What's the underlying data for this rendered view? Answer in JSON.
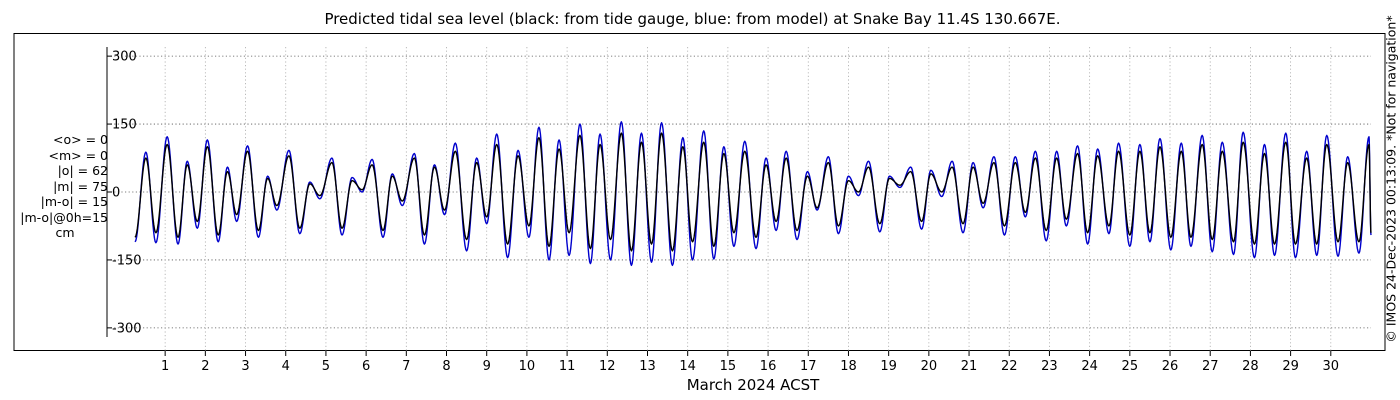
{
  "title": "Predicted tidal sea level (black: from tide gauge, blue: from model) at Snake Bay 11.4S 130.667E.",
  "stats": [
    "<o> = 0",
    "<m> = 0",
    "|o| = 62",
    "|m| = 75",
    "|m-o| = 15",
    "|m-o|@0h=15"
  ],
  "stats_unit": "cm",
  "credit": "© IMOS 24-Dec-2023 00:13:09. *Not for navigation*",
  "chart_data": {
    "type": "line",
    "title": "Predicted tidal sea level (black: from tide gauge, blue: from model) at Snake Bay 11.4S 130.667E.",
    "xlabel": "March 2024 ACST",
    "ylabel": "",
    "x_range": [
      0.25,
      31.0
    ],
    "ylim": [
      -350,
      350
    ],
    "y_ticks": [
      300,
      150,
      0,
      -150,
      -300
    ],
    "y_tick_labels": [
      "300",
      "150",
      "0",
      "-150",
      "-300"
    ],
    "x_ticks": [
      1,
      2,
      3,
      4,
      5,
      6,
      7,
      8,
      9,
      10,
      11,
      12,
      13,
      14,
      15,
      16,
      17,
      18,
      19,
      20,
      21,
      22,
      23,
      24,
      25,
      26,
      27,
      28,
      29,
      30
    ],
    "x_tick_labels": [
      "1",
      "2",
      "3",
      "4",
      "5",
      "6",
      "7",
      "8",
      "9",
      "10",
      "11",
      "12",
      "13",
      "14",
      "15",
      "16",
      "17",
      "18",
      "19",
      "20",
      "21",
      "22",
      "23",
      "24",
      "25",
      "26",
      "27",
      "28",
      "29",
      "30"
    ],
    "grid": true,
    "series": [
      {
        "name": "black: from tide gauge",
        "color": "#000000",
        "extrema": [
          [
            0.25,
            -100
          ],
          [
            0.52,
            75
          ],
          [
            0.77,
            -90
          ],
          [
            1.05,
            105
          ],
          [
            1.32,
            -100
          ],
          [
            1.55,
            60
          ],
          [
            1.8,
            -65
          ],
          [
            2.05,
            100
          ],
          [
            2.32,
            -95
          ],
          [
            2.55,
            45
          ],
          [
            2.78,
            -50
          ],
          [
            3.05,
            90
          ],
          [
            3.32,
            -85
          ],
          [
            3.55,
            30
          ],
          [
            3.78,
            -30
          ],
          [
            4.08,
            80
          ],
          [
            4.35,
            -80
          ],
          [
            4.6,
            18
          ],
          [
            4.85,
            -8
          ],
          [
            5.15,
            65
          ],
          [
            5.4,
            -80
          ],
          [
            5.65,
            25
          ],
          [
            5.9,
            5
          ],
          [
            6.15,
            60
          ],
          [
            6.42,
            -85
          ],
          [
            6.65,
            35
          ],
          [
            6.9,
            -20
          ],
          [
            7.2,
            75
          ],
          [
            7.45,
            -95
          ],
          [
            7.7,
            55
          ],
          [
            7.95,
            -40
          ],
          [
            8.22,
            90
          ],
          [
            8.5,
            -105
          ],
          [
            8.75,
            65
          ],
          [
            9.0,
            -55
          ],
          [
            9.25,
            105
          ],
          [
            9.52,
            -115
          ],
          [
            9.78,
            80
          ],
          [
            10.05,
            -75
          ],
          [
            10.3,
            120
          ],
          [
            10.55,
            -120
          ],
          [
            10.8,
            95
          ],
          [
            11.05,
            -90
          ],
          [
            11.32,
            125
          ],
          [
            11.58,
            -125
          ],
          [
            11.82,
            105
          ],
          [
            12.08,
            -105
          ],
          [
            12.35,
            130
          ],
          [
            12.6,
            -130
          ],
          [
            12.85,
            110
          ],
          [
            13.1,
            -115
          ],
          [
            13.35,
            130
          ],
          [
            13.62,
            -130
          ],
          [
            13.88,
            100
          ],
          [
            14.12,
            -110
          ],
          [
            14.4,
            110
          ],
          [
            14.65,
            -120
          ],
          [
            14.9,
            85
          ],
          [
            15.15,
            -90
          ],
          [
            15.42,
            90
          ],
          [
            15.7,
            -100
          ],
          [
            15.95,
            60
          ],
          [
            16.2,
            -65
          ],
          [
            16.45,
            75
          ],
          [
            16.72,
            -85
          ],
          [
            16.98,
            35
          ],
          [
            17.22,
            -35
          ],
          [
            17.5,
            65
          ],
          [
            17.75,
            -75
          ],
          [
            18.0,
            25
          ],
          [
            18.25,
            0
          ],
          [
            18.5,
            55
          ],
          [
            18.78,
            -70
          ],
          [
            19.02,
            30
          ],
          [
            19.28,
            15
          ],
          [
            19.55,
            45
          ],
          [
            19.82,
            -65
          ],
          [
            20.05,
            40
          ],
          [
            20.32,
            0
          ],
          [
            20.58,
            55
          ],
          [
            20.85,
            -70
          ],
          [
            21.1,
            55
          ],
          [
            21.35,
            -25
          ],
          [
            21.62,
            65
          ],
          [
            21.88,
            -75
          ],
          [
            22.15,
            65
          ],
          [
            22.4,
            -45
          ],
          [
            22.65,
            75
          ],
          [
            22.92,
            -85
          ],
          [
            23.18,
            75
          ],
          [
            23.42,
            -60
          ],
          [
            23.7,
            85
          ],
          [
            23.95,
            -90
          ],
          [
            24.2,
            80
          ],
          [
            24.48,
            -75
          ],
          [
            24.72,
            90
          ],
          [
            25.0,
            -95
          ],
          [
            25.25,
            90
          ],
          [
            25.5,
            -90
          ],
          [
            25.75,
            100
          ],
          [
            26.02,
            -100
          ],
          [
            26.28,
            90
          ],
          [
            26.52,
            -100
          ],
          [
            26.8,
            105
          ],
          [
            27.05,
            -105
          ],
          [
            27.3,
            90
          ],
          [
            27.58,
            -110
          ],
          [
            27.82,
            110
          ],
          [
            28.1,
            -115
          ],
          [
            28.35,
            85
          ],
          [
            28.6,
            -115
          ],
          [
            28.88,
            110
          ],
          [
            29.12,
            -115
          ],
          [
            29.4,
            75
          ],
          [
            29.65,
            -115
          ],
          [
            29.9,
            105
          ],
          [
            30.18,
            -110
          ],
          [
            30.42,
            65
          ],
          [
            30.7,
            -110
          ],
          [
            30.95,
            105
          ],
          [
            31.0,
            -90
          ]
        ]
      },
      {
        "name": "blue: from model",
        "color": "#0000cc",
        "extrema": [
          [
            0.25,
            -110
          ],
          [
            0.52,
            88
          ],
          [
            0.77,
            -112
          ],
          [
            1.05,
            122
          ],
          [
            1.32,
            -115
          ],
          [
            1.55,
            68
          ],
          [
            1.8,
            -80
          ],
          [
            2.05,
            115
          ],
          [
            2.32,
            -110
          ],
          [
            2.55,
            55
          ],
          [
            2.78,
            -65
          ],
          [
            3.05,
            102
          ],
          [
            3.32,
            -100
          ],
          [
            3.55,
            35
          ],
          [
            3.78,
            -40
          ],
          [
            4.08,
            92
          ],
          [
            4.35,
            -92
          ],
          [
            4.6,
            22
          ],
          [
            4.85,
            -15
          ],
          [
            5.15,
            75
          ],
          [
            5.4,
            -95
          ],
          [
            5.65,
            32
          ],
          [
            5.9,
            0
          ],
          [
            6.15,
            72
          ],
          [
            6.42,
            -100
          ],
          [
            6.65,
            40
          ],
          [
            6.9,
            -30
          ],
          [
            7.2,
            85
          ],
          [
            7.45,
            -115
          ],
          [
            7.7,
            60
          ],
          [
            7.95,
            -50
          ],
          [
            8.22,
            108
          ],
          [
            8.5,
            -130
          ],
          [
            8.75,
            75
          ],
          [
            9.0,
            -70
          ],
          [
            9.25,
            128
          ],
          [
            9.52,
            -145
          ],
          [
            9.78,
            92
          ],
          [
            10.05,
            -100
          ],
          [
            10.3,
            143
          ],
          [
            10.55,
            -150
          ],
          [
            10.8,
            115
          ],
          [
            11.05,
            -140
          ],
          [
            11.32,
            150
          ],
          [
            11.58,
            -158
          ],
          [
            11.82,
            128
          ],
          [
            12.08,
            -150
          ],
          [
            12.35,
            155
          ],
          [
            12.6,
            -162
          ],
          [
            12.85,
            130
          ],
          [
            13.1,
            -155
          ],
          [
            13.35,
            153
          ],
          [
            13.62,
            -162
          ],
          [
            13.88,
            120
          ],
          [
            14.12,
            -150
          ],
          [
            14.4,
            135
          ],
          [
            14.65,
            -148
          ],
          [
            14.9,
            100
          ],
          [
            15.15,
            -120
          ],
          [
            15.42,
            112
          ],
          [
            15.7,
            -125
          ],
          [
            15.95,
            75
          ],
          [
            16.2,
            -85
          ],
          [
            16.45,
            90
          ],
          [
            16.72,
            -105
          ],
          [
            16.98,
            45
          ],
          [
            17.22,
            -40
          ],
          [
            17.5,
            78
          ],
          [
            17.75,
            -92
          ],
          [
            18.0,
            35
          ],
          [
            18.25,
            -8
          ],
          [
            18.5,
            68
          ],
          [
            18.78,
            -88
          ],
          [
            19.02,
            35
          ],
          [
            19.28,
            10
          ],
          [
            19.55,
            55
          ],
          [
            19.82,
            -82
          ],
          [
            20.05,
            48
          ],
          [
            20.32,
            -10
          ],
          [
            20.58,
            68
          ],
          [
            20.85,
            -90
          ],
          [
            21.1,
            65
          ],
          [
            21.35,
            -35
          ],
          [
            21.62,
            78
          ],
          [
            21.88,
            -95
          ],
          [
            22.15,
            78
          ],
          [
            22.4,
            -55
          ],
          [
            22.65,
            90
          ],
          [
            22.92,
            -108
          ],
          [
            23.18,
            90
          ],
          [
            23.42,
            -75
          ],
          [
            23.7,
            102
          ],
          [
            23.95,
            -115
          ],
          [
            24.2,
            95
          ],
          [
            24.48,
            -92
          ],
          [
            24.72,
            108
          ],
          [
            25.0,
            -120
          ],
          [
            25.25,
            105
          ],
          [
            25.5,
            -110
          ],
          [
            25.75,
            118
          ],
          [
            26.02,
            -128
          ],
          [
            26.28,
            108
          ],
          [
            26.52,
            -120
          ],
          [
            26.8,
            125
          ],
          [
            27.05,
            -132
          ],
          [
            27.3,
            110
          ],
          [
            27.58,
            -138
          ],
          [
            27.82,
            132
          ],
          [
            28.1,
            -145
          ],
          [
            28.35,
            105
          ],
          [
            28.6,
            -140
          ],
          [
            28.88,
            130
          ],
          [
            29.12,
            -145
          ],
          [
            29.4,
            90
          ],
          [
            29.65,
            -140
          ],
          [
            29.9,
            125
          ],
          [
            30.18,
            -142
          ],
          [
            30.42,
            78
          ],
          [
            30.7,
            -135
          ],
          [
            30.95,
            122
          ],
          [
            31.0,
            -95
          ]
        ]
      }
    ]
  }
}
